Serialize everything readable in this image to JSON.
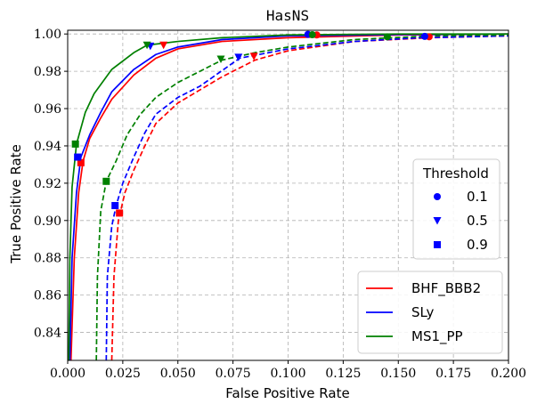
{
  "chart_data": {
    "type": "line",
    "title": "HasNS",
    "xlabel": "False Positive Rate",
    "ylabel": "True Positive Rate",
    "xlim": [
      0.0,
      0.2
    ],
    "ylim": [
      0.825,
      1.002
    ],
    "xticks": [
      "0.000",
      "0.025",
      "0.050",
      "0.075",
      "0.100",
      "0.125",
      "0.150",
      "0.175",
      "0.200"
    ],
    "yticks": [
      "0.84",
      "0.86",
      "0.88",
      "0.90",
      "0.92",
      "0.94",
      "0.96",
      "0.98",
      "1.00"
    ],
    "grid": true,
    "series": [
      {
        "name": "BHF_BBB2",
        "style": "solid",
        "color": "#ff0000",
        "points": [
          [
            0.0015,
            0.825
          ],
          [
            0.003,
            0.88
          ],
          [
            0.005,
            0.915
          ],
          [
            0.007,
            0.932
          ],
          [
            0.01,
            0.944
          ],
          [
            0.015,
            0.955
          ],
          [
            0.02,
            0.965
          ],
          [
            0.03,
            0.978
          ],
          [
            0.04,
            0.987
          ],
          [
            0.05,
            0.992
          ],
          [
            0.07,
            0.996
          ],
          [
            0.1,
            0.998
          ],
          [
            0.15,
            0.9995
          ],
          [
            0.2,
            1.0
          ]
        ]
      },
      {
        "name": "BHF_BBB2",
        "style": "dashed",
        "color": "#ff0000",
        "points": [
          [
            0.02,
            0.825
          ],
          [
            0.021,
            0.87
          ],
          [
            0.023,
            0.9
          ],
          [
            0.026,
            0.915
          ],
          [
            0.03,
            0.927
          ],
          [
            0.035,
            0.94
          ],
          [
            0.04,
            0.952
          ],
          [
            0.05,
            0.963
          ],
          [
            0.06,
            0.97
          ],
          [
            0.07,
            0.977
          ],
          [
            0.085,
            0.986
          ],
          [
            0.1,
            0.991
          ],
          [
            0.13,
            0.996
          ],
          [
            0.165,
            0.998
          ],
          [
            0.2,
            0.999
          ]
        ]
      },
      {
        "name": "SLy",
        "style": "solid",
        "color": "#0000ff",
        "points": [
          [
            0.001,
            0.825
          ],
          [
            0.002,
            0.88
          ],
          [
            0.004,
            0.915
          ],
          [
            0.006,
            0.934
          ],
          [
            0.01,
            0.946
          ],
          [
            0.015,
            0.958
          ],
          [
            0.02,
            0.969
          ],
          [
            0.03,
            0.981
          ],
          [
            0.04,
            0.989
          ],
          [
            0.05,
            0.993
          ],
          [
            0.07,
            0.997
          ],
          [
            0.1,
            0.999
          ],
          [
            0.15,
            0.9997
          ],
          [
            0.2,
            1.0
          ]
        ]
      },
      {
        "name": "SLy",
        "style": "dashed",
        "color": "#0000ff",
        "points": [
          [
            0.0175,
            0.825
          ],
          [
            0.018,
            0.87
          ],
          [
            0.02,
            0.897
          ],
          [
            0.022,
            0.908
          ],
          [
            0.025,
            0.92
          ],
          [
            0.03,
            0.934
          ],
          [
            0.035,
            0.947
          ],
          [
            0.04,
            0.957
          ],
          [
            0.05,
            0.966
          ],
          [
            0.06,
            0.972
          ],
          [
            0.078,
            0.987
          ],
          [
            0.1,
            0.992
          ],
          [
            0.13,
            0.996
          ],
          [
            0.16,
            0.998
          ],
          [
            0.2,
            0.999
          ]
        ]
      },
      {
        "name": "MS1_PP",
        "style": "solid",
        "color": "#008000",
        "points": [
          [
            0.0005,
            0.825
          ],
          [
            0.001,
            0.88
          ],
          [
            0.002,
            0.918
          ],
          [
            0.004,
            0.941
          ],
          [
            0.008,
            0.958
          ],
          [
            0.012,
            0.968
          ],
          [
            0.02,
            0.981
          ],
          [
            0.03,
            0.99
          ],
          [
            0.036,
            0.994
          ],
          [
            0.05,
            0.996
          ],
          [
            0.07,
            0.998
          ],
          [
            0.1,
            0.9995
          ],
          [
            0.15,
            1.0
          ],
          [
            0.2,
            1.0
          ]
        ]
      },
      {
        "name": "MS1_PP",
        "style": "dashed",
        "color": "#008000",
        "points": [
          [
            0.013,
            0.825
          ],
          [
            0.0135,
            0.87
          ],
          [
            0.015,
            0.905
          ],
          [
            0.0175,
            0.921
          ],
          [
            0.022,
            0.932
          ],
          [
            0.027,
            0.946
          ],
          [
            0.033,
            0.957
          ],
          [
            0.04,
            0.966
          ],
          [
            0.05,
            0.974
          ],
          [
            0.06,
            0.98
          ],
          [
            0.07,
            0.986
          ],
          [
            0.085,
            0.99
          ],
          [
            0.1,
            0.993
          ],
          [
            0.13,
            0.997
          ],
          [
            0.165,
            0.999
          ],
          [
            0.2,
            0.9995
          ]
        ]
      }
    ],
    "markers": [
      {
        "series": "BHF_BBB2",
        "threshold": "0.1",
        "shape": "circle",
        "x": 0.164,
        "y": 0.9985
      },
      {
        "series": "BHF_BBB2",
        "threshold": "0.5",
        "shape": "triangle",
        "x": 0.0845,
        "y": 0.988
      },
      {
        "series": "BHF_BBB2",
        "threshold": "0.9",
        "shape": "square",
        "x": 0.0235,
        "y": 0.904
      },
      {
        "series": "BHF_BBB2",
        "threshold": "0.1",
        "shape": "circle",
        "x": 0.113,
        "y": 0.9995
      },
      {
        "series": "BHF_BBB2",
        "threshold": "0.5",
        "shape": "triangle",
        "x": 0.0435,
        "y": 0.994
      },
      {
        "series": "BHF_BBB2",
        "threshold": "0.9",
        "shape": "square",
        "x": 0.006,
        "y": 0.931
      },
      {
        "series": "SLy",
        "threshold": "0.1",
        "shape": "circle",
        "x": 0.162,
        "y": 0.9987
      },
      {
        "series": "SLy",
        "threshold": "0.5",
        "shape": "triangle",
        "x": 0.0775,
        "y": 0.9875
      },
      {
        "series": "SLy",
        "threshold": "0.9",
        "shape": "square",
        "x": 0.0215,
        "y": 0.908
      },
      {
        "series": "SLy",
        "threshold": "0.1",
        "shape": "circle",
        "x": 0.109,
        "y": 0.9998
      },
      {
        "series": "SLy",
        "threshold": "0.5",
        "shape": "triangle",
        "x": 0.0375,
        "y": 0.9935
      },
      {
        "series": "SLy",
        "threshold": "0.9",
        "shape": "square",
        "x": 0.0045,
        "y": 0.934
      },
      {
        "series": "MS1_PP",
        "threshold": "0.1",
        "shape": "circle",
        "x": 0.145,
        "y": 0.9985
      },
      {
        "series": "MS1_PP",
        "threshold": "0.5",
        "shape": "triangle",
        "x": 0.0695,
        "y": 0.9865
      },
      {
        "series": "MS1_PP",
        "threshold": "0.9",
        "shape": "square",
        "x": 0.0175,
        "y": 0.921
      },
      {
        "series": "MS1_PP",
        "threshold": "0.1",
        "shape": "circle",
        "x": 0.111,
        "y": 0.9996
      },
      {
        "series": "MS1_PP",
        "threshold": "0.5",
        "shape": "triangle",
        "x": 0.036,
        "y": 0.994
      },
      {
        "series": "MS1_PP",
        "threshold": "0.9",
        "shape": "square",
        "x": 0.0035,
        "y": 0.941
      }
    ],
    "threshold_legend": {
      "title": "Threshold",
      "placement": "right",
      "entries": [
        {
          "label": "0.1",
          "shape": "circle"
        },
        {
          "label": "0.5",
          "shape": "triangle"
        },
        {
          "label": "0.9",
          "shape": "square"
        }
      ]
    },
    "model_legend": {
      "placement": "bottom-right",
      "entries": [
        {
          "label": "BHF_BBB2",
          "color": "#ff0000"
        },
        {
          "label": "SLy",
          "color": "#0000ff"
        },
        {
          "label": "MS1_PP",
          "color": "#008000"
        }
      ]
    }
  }
}
